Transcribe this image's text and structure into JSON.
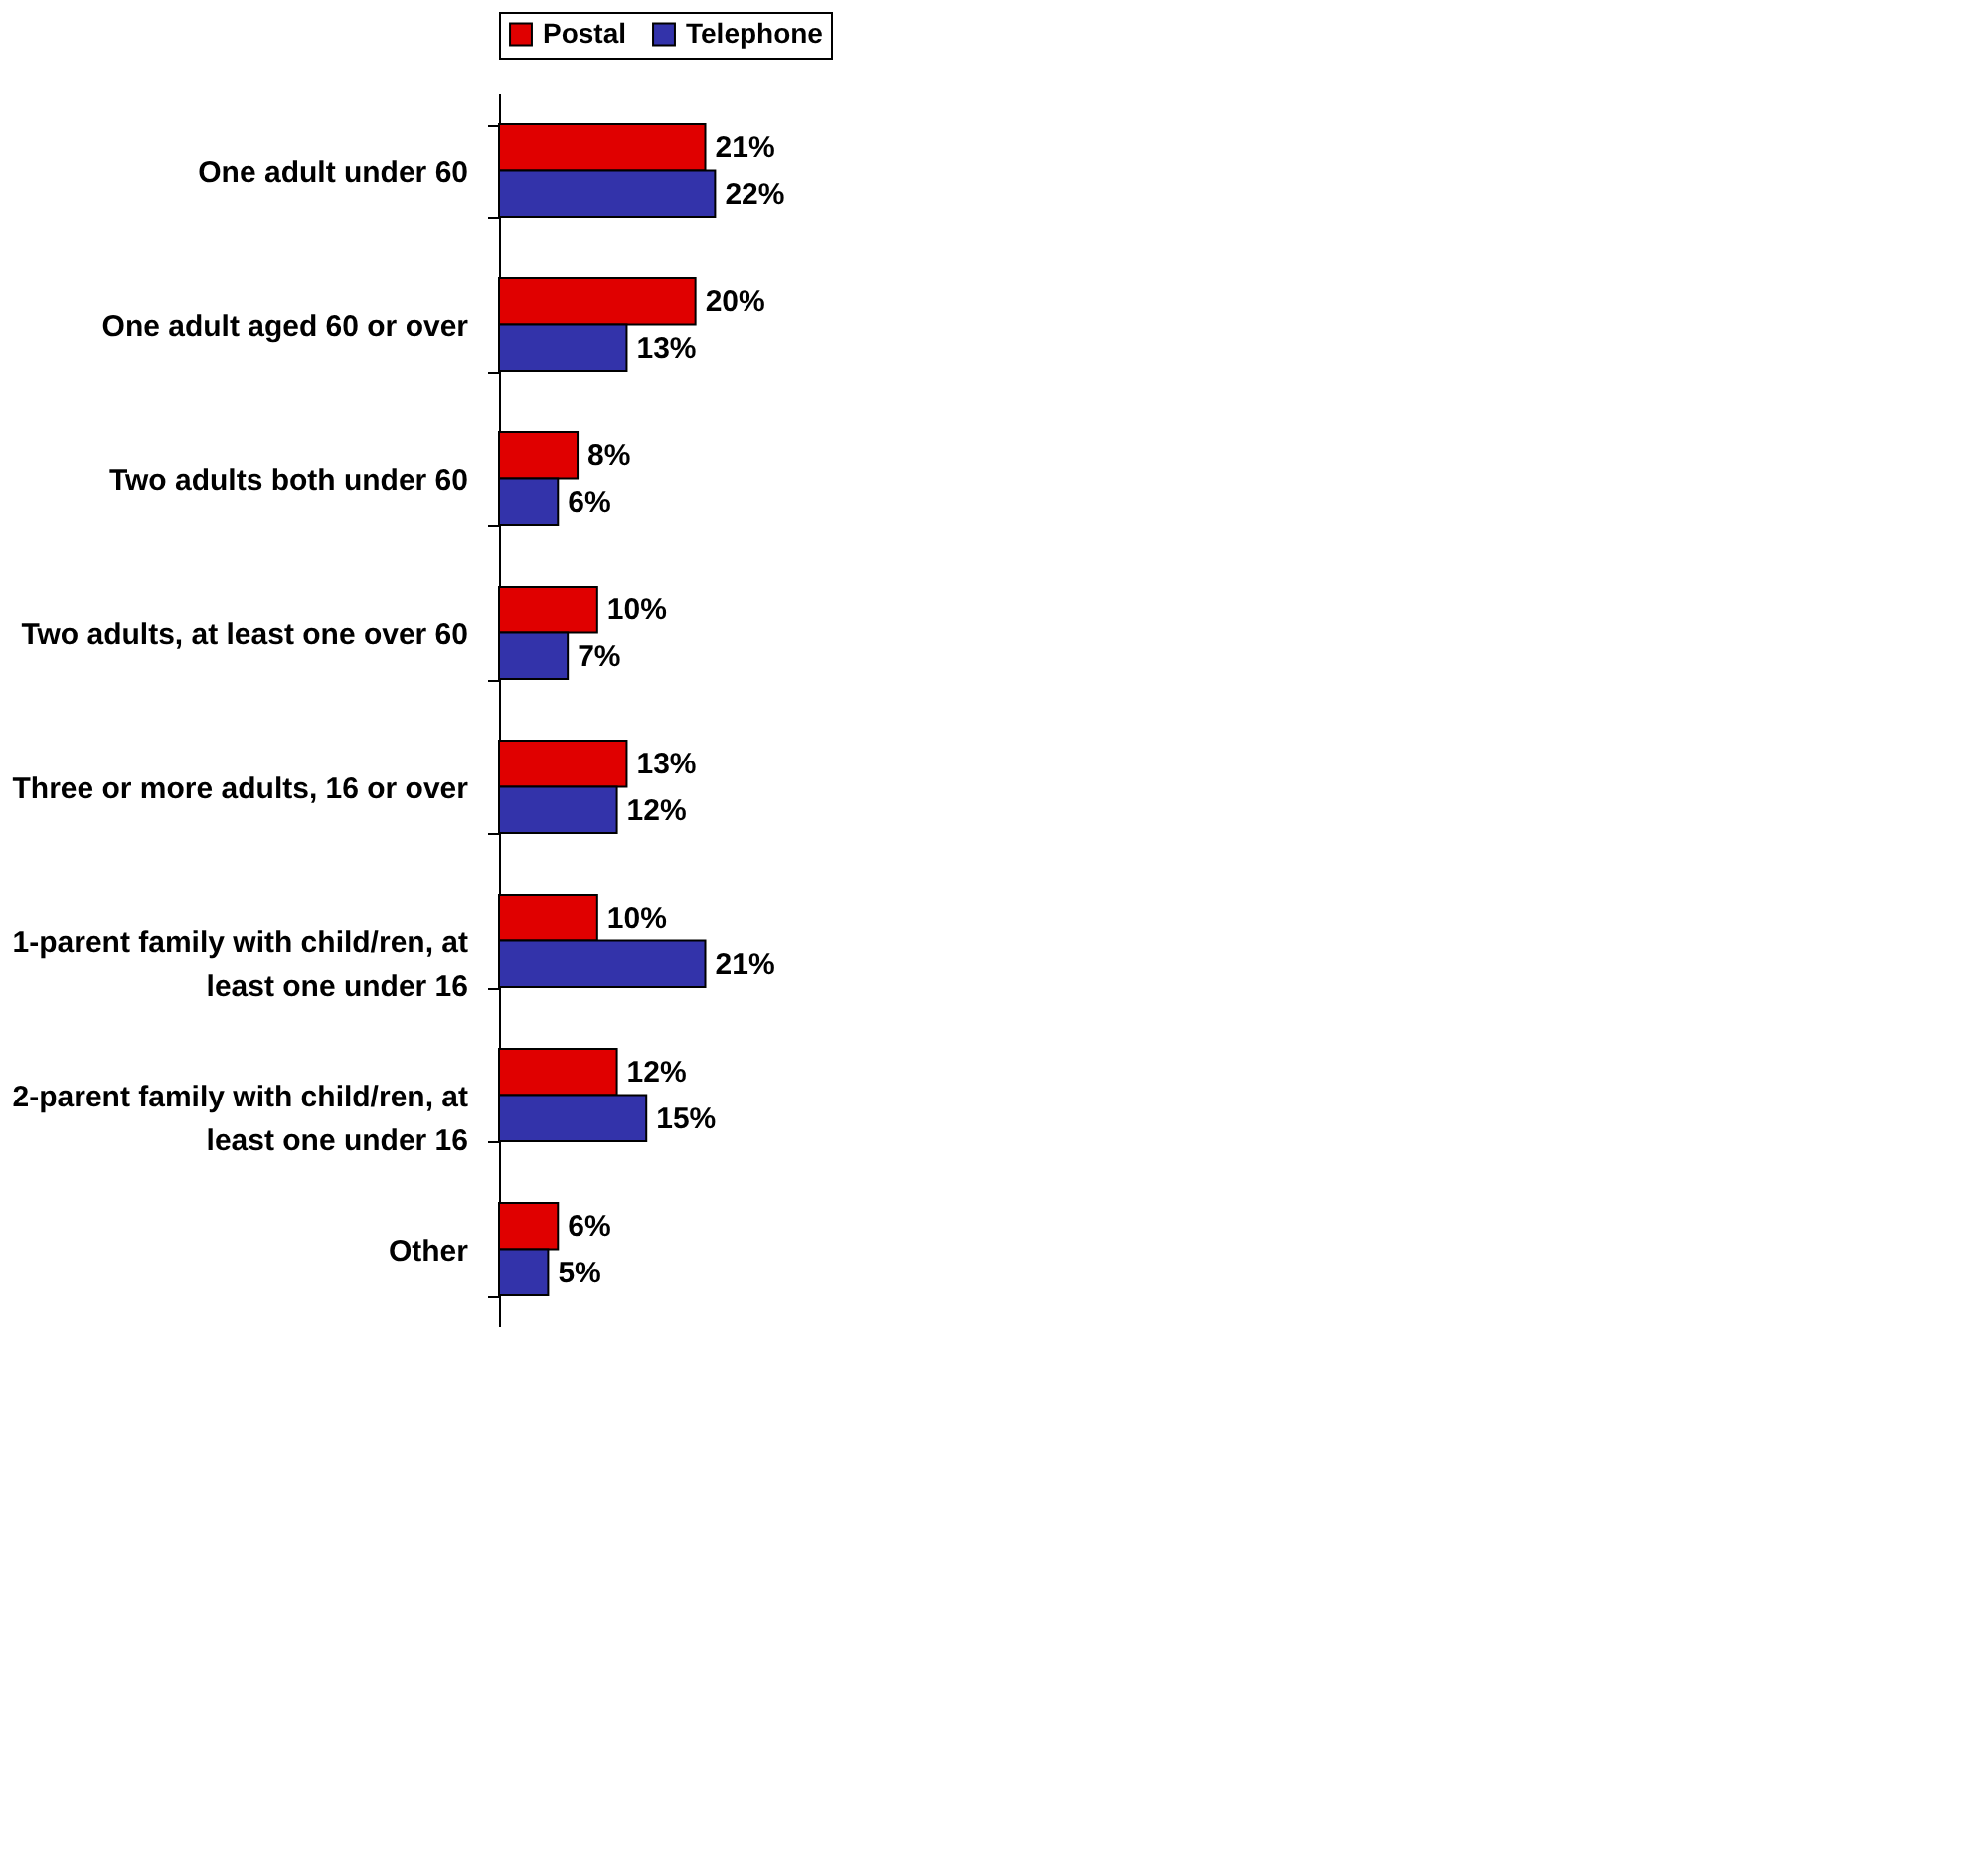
{
  "chart_data": {
    "type": "bar",
    "orientation": "horizontal",
    "categories": [
      "One adult under 60",
      "One adult aged 60 or over",
      "Two adults both under 60",
      "Two adults, at least one over 60",
      "Three or more adults, 16 or over",
      "1-parent family with child/ren, at least one under 16",
      "2-parent family with child/ren, at least one under 16",
      "Other"
    ],
    "series": [
      {
        "name": "Postal",
        "color": "#e00000",
        "values": [
          21,
          20,
          8,
          10,
          13,
          10,
          12,
          6
        ],
        "value_labels": [
          "21%",
          "20%",
          "8%",
          "10%",
          "13%",
          "10%",
          "12%",
          "6%"
        ]
      },
      {
        "name": "Telephone",
        "color": "#3333aa",
        "values": [
          22,
          13,
          6,
          7,
          12,
          21,
          15,
          5
        ],
        "value_labels": [
          "22%",
          "13%",
          "6%",
          "7%",
          "12%",
          "21%",
          "15%",
          "5%"
        ]
      }
    ],
    "legend": "top"
  }
}
